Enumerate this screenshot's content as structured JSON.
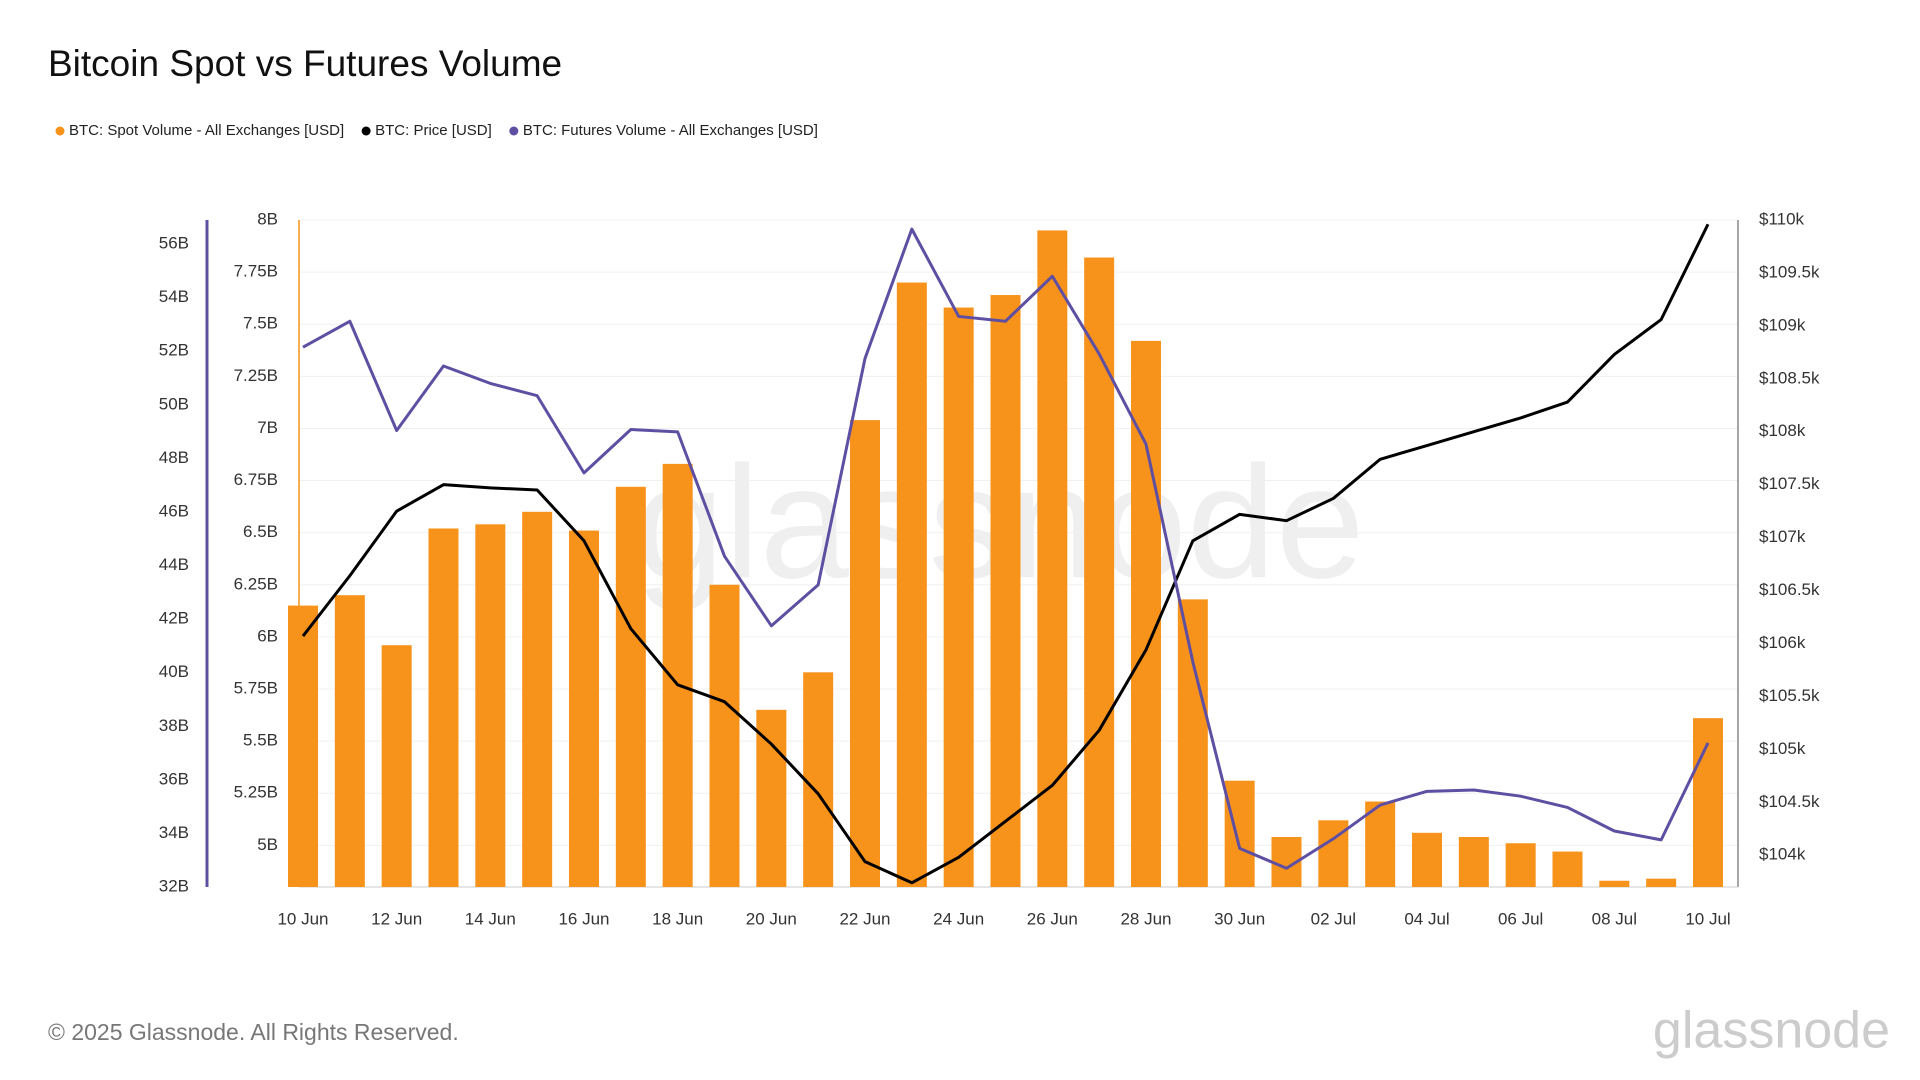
{
  "chart_data": {
    "type": "bar",
    "title": "Bitcoin Spot vs Futures Volume",
    "copyright": "© 2025 Glassnode. All Rights Reserved.",
    "watermark": "glassnode",
    "categories": [
      "10 Jun",
      null,
      "12 Jun",
      null,
      "14 Jun",
      null,
      "16 Jun",
      null,
      "18 Jun",
      null,
      "20 Jun",
      null,
      "22 Jun",
      null,
      "24 Jun",
      null,
      "26 Jun",
      null,
      "28 Jun",
      null,
      "30 Jun",
      null,
      "02 Jul",
      null,
      "04 Jul",
      null,
      "06 Jul",
      null,
      "08 Jul",
      null,
      "10 Jul"
    ],
    "series": [
      {
        "name": "BTC: Spot Volume - All Exchanges [USD]",
        "type": "bar",
        "axis": "y",
        "color": "#f7931a",
        "values": [
          6150000000,
          6200000000,
          5960000000,
          6520000000,
          6540000000,
          6600000000,
          6510000000,
          6720000000,
          6830000000,
          6250000000,
          5650000000,
          5830000000,
          7040000000,
          7700000000,
          7580000000,
          7640000000,
          7950000000,
          7820000000,
          7420000000,
          6180000000,
          5310000000,
          5040000000,
          5120000000,
          5210000000,
          5060000000,
          5040000000,
          5010000000,
          4970000000,
          4830000000,
          4840000000,
          5610000000
        ]
      },
      {
        "name": "BTC: Price [USD]",
        "type": "line",
        "axis": "y3",
        "color": "#000000",
        "values": [
          106070,
          106640,
          107250,
          107500,
          107470,
          107450,
          106970,
          106140,
          105610,
          105450,
          105050,
          104580,
          103940,
          103740,
          103980,
          104320,
          104660,
          105180,
          105940,
          106970,
          107220,
          107160,
          107370,
          107740,
          107870,
          108000,
          108130,
          108280,
          108730,
          109060,
          109960
        ]
      },
      {
        "name": "BTC: Futures Volume - All Exchanges [USD]",
        "type": "line",
        "axis": "y2",
        "color": "#5e4fa2",
        "values": [
          52150000000,
          53120000000,
          49040000000,
          51450000000,
          50800000000,
          50340000000,
          47460000000,
          49080000000,
          48990000000,
          44350000000,
          41750000000,
          43280000000,
          51730000000,
          56560000000,
          53300000000,
          53120000000,
          54800000000,
          51900000000,
          48530000000,
          40400000000,
          33440000000,
          32700000000,
          33800000000,
          35060000000,
          35570000000,
          35620000000,
          35390000000,
          34970000000,
          34090000000,
          33760000000,
          37380000000
        ]
      }
    ],
    "ylim": [
      4800000000,
      8000000000
    ],
    "yticks": [
      {
        "value": 5000000000,
        "label": "5B"
      },
      {
        "value": 5250000000,
        "label": "5.25B"
      },
      {
        "value": 5500000000,
        "label": "5.5B"
      },
      {
        "value": 5750000000,
        "label": "5.75B"
      },
      {
        "value": 6000000000,
        "label": "6B"
      },
      {
        "value": 6250000000,
        "label": "6.25B"
      },
      {
        "value": 6500000000,
        "label": "6.5B"
      },
      {
        "value": 6750000000,
        "label": "6.75B"
      },
      {
        "value": 7000000000,
        "label": "7B"
      },
      {
        "value": 7250000000,
        "label": "7.25B"
      },
      {
        "value": 7500000000,
        "label": "7.5B"
      },
      {
        "value": 7750000000,
        "label": "7.75B"
      },
      {
        "value": 8000000000,
        "label": "8B"
      }
    ],
    "y2lim": [
      32000000000,
      56900000000
    ],
    "y2ticks": [
      {
        "value": 32000000000,
        "label": "32B"
      },
      {
        "value": 34000000000,
        "label": "34B"
      },
      {
        "value": 36000000000,
        "label": "36B"
      },
      {
        "value": 38000000000,
        "label": "38B"
      },
      {
        "value": 40000000000,
        "label": "40B"
      },
      {
        "value": 42000000000,
        "label": "42B"
      },
      {
        "value": 44000000000,
        "label": "44B"
      },
      {
        "value": 46000000000,
        "label": "46B"
      },
      {
        "value": 48000000000,
        "label": "48B"
      },
      {
        "value": 50000000000,
        "label": "50B"
      },
      {
        "value": 52000000000,
        "label": "52B"
      },
      {
        "value": 54000000000,
        "label": "54B"
      },
      {
        "value": 56000000000,
        "label": "56B"
      }
    ],
    "y3lim": [
      103700,
      110000
    ],
    "y3ticks": [
      {
        "value": 104000,
        "label": "$104k"
      },
      {
        "value": 104500,
        "label": "$104.5k"
      },
      {
        "value": 105000,
        "label": "$105k"
      },
      {
        "value": 105500,
        "label": "$105.5k"
      },
      {
        "value": 106000,
        "label": "$106k"
      },
      {
        "value": 106500,
        "label": "$106.5k"
      },
      {
        "value": 107000,
        "label": "$107k"
      },
      {
        "value": 107500,
        "label": "$107.5k"
      },
      {
        "value": 108000,
        "label": "$108k"
      },
      {
        "value": 108500,
        "label": "$108.5k"
      },
      {
        "value": 109000,
        "label": "$109k"
      },
      {
        "value": 109500,
        "label": "$109.5k"
      },
      {
        "value": 110000,
        "label": "$110k"
      }
    ],
    "grid": true
  }
}
